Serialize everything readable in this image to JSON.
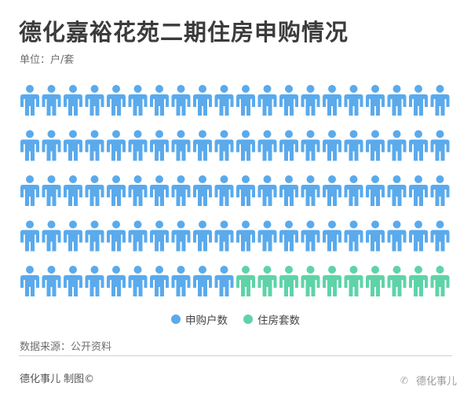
{
  "title": "德化嘉裕花苑二期住房申购情况",
  "unit_label": "单位：户/套",
  "chart_data": {
    "type": "pictogram",
    "title": "德化嘉裕花苑二期住房申购情况",
    "unit": "户/套",
    "grid": {
      "rows": 5,
      "columns": 20
    },
    "series": [
      {
        "name": "申购户数",
        "color": "#5aaaec",
        "value": 90
      },
      {
        "name": "住房套数",
        "color": "#5fd3a8",
        "value": 10
      }
    ],
    "legend_position": "bottom-center"
  },
  "legend": [
    {
      "label": "申购户数",
      "color": "#5aaaec"
    },
    {
      "label": "住房套数",
      "color": "#5fd3a8"
    }
  ],
  "source": "数据来源：公开资料",
  "credit": "德化事儿 制图©",
  "watermark": {
    "icon": "wechat-icon",
    "text": "德化事儿"
  }
}
